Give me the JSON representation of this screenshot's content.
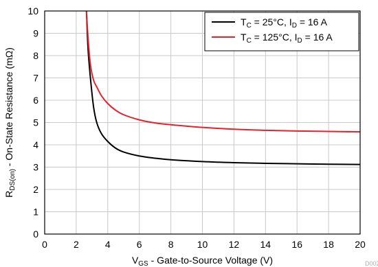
{
  "chart_data": {
    "type": "line",
    "title": "",
    "xlabel": {
      "main": "V",
      "sub": "GS",
      "rest": " - Gate-to-Source Voltage (V)"
    },
    "ylabel": {
      "main": "R",
      "sub": "DS(on)",
      "rest": " - On-State Resistance (mΩ)"
    },
    "xlim": [
      0,
      20
    ],
    "ylim": [
      0,
      10
    ],
    "xticks": [
      "0",
      "2",
      "4",
      "6",
      "8",
      "10",
      "12",
      "14",
      "16",
      "18",
      "20"
    ],
    "yticks": [
      "0",
      "1",
      "2",
      "3",
      "4",
      "5",
      "6",
      "7",
      "8",
      "9",
      "10"
    ],
    "grid": true,
    "legend_position": "top-right",
    "series": [
      {
        "name_parts": [
          "T",
          "C",
          " = 25°C, I",
          "D",
          " = 16 A"
        ],
        "color": "#000000",
        "x": [
          2.65,
          2.75,
          2.9,
          3.1,
          3.3,
          3.6,
          4.0,
          4.5,
          5.0,
          6.0,
          7.0,
          8.0,
          10.0,
          12.0,
          14.0,
          16.0,
          18.0,
          20.0
        ],
        "y": [
          10.0,
          8.3,
          7.0,
          5.7,
          5.0,
          4.5,
          4.15,
          3.85,
          3.68,
          3.5,
          3.4,
          3.33,
          3.25,
          3.2,
          3.17,
          3.15,
          3.13,
          3.12
        ]
      },
      {
        "name_parts": [
          "T",
          "C",
          " = 125°C, I",
          "D",
          " = 16 A"
        ],
        "color": "#e8202a",
        "x": [
          2.65,
          2.75,
          2.9,
          3.1,
          3.3,
          3.6,
          4.0,
          4.5,
          5.0,
          6.0,
          7.0,
          8.0,
          10.0,
          12.0,
          14.0,
          16.0,
          18.0,
          20.0
        ],
        "y": [
          10.0,
          8.8,
          7.6,
          6.9,
          6.6,
          6.2,
          5.85,
          5.55,
          5.35,
          5.12,
          4.98,
          4.9,
          4.78,
          4.7,
          4.65,
          4.62,
          4.6,
          4.58
        ]
      }
    ]
  },
  "watermark": "D002"
}
